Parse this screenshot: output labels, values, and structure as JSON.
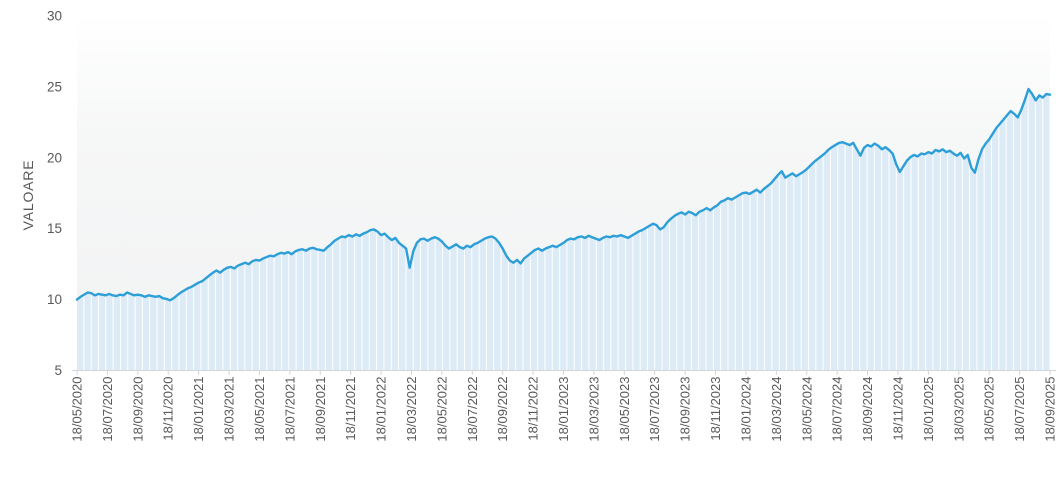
{
  "chart_data": {
    "type": "area",
    "title": "",
    "xlabel": "",
    "ylabel": "VALOARE",
    "ylim": [
      5,
      30
    ],
    "y_ticks": [
      30,
      25,
      20,
      15,
      10,
      5
    ],
    "grid": "off",
    "legend": "none",
    "x_tick_labels": [
      "18/05/2020",
      "18/07/2020",
      "18/09/2020",
      "18/11/2020",
      "18/01/2021",
      "18/03/2021",
      "18/05/2021",
      "18/07/2021",
      "18/09/2021",
      "18/11/2021",
      "18/01/2022",
      "18/03/2022",
      "18/05/2022",
      "18/07/2022",
      "18/09/2022",
      "18/11/2022",
      "18/01/2023",
      "18/03/2023",
      "18/05/2023",
      "18/07/2023",
      "18/09/2023",
      "18/11/2023",
      "18/01/2024",
      "18/03/2024",
      "18/05/2024",
      "18/07/2024",
      "18/09/2024",
      "18/11/2024",
      "18/01/2025",
      "18/03/2025",
      "18/05/2025",
      "18/07/2025",
      "18/09/2025"
    ],
    "series": [
      {
        "name": "VALOARE",
        "values": [
          10.0,
          10.2,
          10.35,
          10.5,
          10.45,
          10.3,
          10.4,
          10.35,
          10.3,
          10.4,
          10.3,
          10.25,
          10.35,
          10.3,
          10.5,
          10.4,
          10.3,
          10.35,
          10.3,
          10.2,
          10.3,
          10.25,
          10.2,
          10.25,
          10.1,
          10.05,
          9.95,
          10.1,
          10.3,
          10.5,
          10.65,
          10.8,
          10.9,
          11.05,
          11.2,
          11.3,
          11.5,
          11.7,
          11.9,
          12.05,
          11.9,
          12.1,
          12.25,
          12.3,
          12.2,
          12.4,
          12.5,
          12.6,
          12.5,
          12.7,
          12.8,
          12.75,
          12.9,
          13.0,
          13.1,
          13.05,
          13.2,
          13.3,
          13.25,
          13.35,
          13.2,
          13.4,
          13.5,
          13.55,
          13.45,
          13.6,
          13.65,
          13.55,
          13.5,
          13.45,
          13.7,
          13.9,
          14.15,
          14.3,
          14.45,
          14.4,
          14.55,
          14.45,
          14.6,
          14.5,
          14.65,
          14.75,
          14.9,
          14.95,
          14.8,
          14.55,
          14.65,
          14.4,
          14.2,
          14.35,
          14.0,
          13.8,
          13.6,
          12.25,
          13.4,
          14.0,
          14.25,
          14.3,
          14.15,
          14.3,
          14.4,
          14.3,
          14.1,
          13.8,
          13.6,
          13.75,
          13.9,
          13.7,
          13.6,
          13.8,
          13.7,
          13.9,
          14.0,
          14.15,
          14.3,
          14.4,
          14.45,
          14.3,
          14.0,
          13.6,
          13.1,
          12.75,
          12.6,
          12.8,
          12.55,
          12.9,
          13.1,
          13.3,
          13.5,
          13.6,
          13.45,
          13.6,
          13.7,
          13.8,
          13.7,
          13.85,
          14.0,
          14.2,
          14.3,
          14.25,
          14.4,
          14.45,
          14.35,
          14.5,
          14.4,
          14.3,
          14.2,
          14.35,
          14.45,
          14.4,
          14.5,
          14.45,
          14.55,
          14.45,
          14.35,
          14.5,
          14.65,
          14.8,
          14.9,
          15.05,
          15.2,
          15.35,
          15.25,
          14.95,
          15.1,
          15.45,
          15.7,
          15.9,
          16.05,
          16.15,
          16.0,
          16.2,
          16.1,
          15.95,
          16.2,
          16.3,
          16.45,
          16.3,
          16.5,
          16.65,
          16.9,
          17.0,
          17.15,
          17.05,
          17.2,
          17.35,
          17.5,
          17.55,
          17.45,
          17.6,
          17.75,
          17.55,
          17.8,
          18.0,
          18.2,
          18.5,
          18.8,
          19.05,
          18.6,
          18.75,
          18.9,
          18.7,
          18.85,
          19.0,
          19.2,
          19.45,
          19.7,
          19.9,
          20.1,
          20.3,
          20.55,
          20.75,
          20.9,
          21.05,
          21.1,
          21.0,
          20.9,
          21.05,
          20.6,
          20.15,
          20.7,
          20.9,
          20.8,
          21.0,
          20.85,
          20.6,
          20.75,
          20.55,
          20.3,
          19.55,
          19.0,
          19.4,
          19.8,
          20.05,
          20.2,
          20.1,
          20.3,
          20.25,
          20.4,
          20.3,
          20.55,
          20.45,
          20.6,
          20.4,
          20.5,
          20.3,
          20.15,
          20.35,
          19.95,
          20.2,
          19.3,
          18.95,
          19.9,
          20.6,
          21.0,
          21.3,
          21.7,
          22.1,
          22.4,
          22.7,
          23.0,
          23.3,
          23.1,
          22.85,
          23.4,
          24.1,
          24.85,
          24.5,
          24.05,
          24.4,
          24.25,
          24.5,
          24.45
        ]
      }
    ],
    "colors": {
      "line": "#2d9fd8",
      "area_fill": "#dcebf6",
      "area_stripe": "#ffffff",
      "axis": "#d2d6d8",
      "tick_text": "#595959",
      "axis_title_text": "#595959",
      "plot_bg_top": "#ffffff",
      "plot_bg_mid": "#f6f7f7",
      "plot_bg_bottom": "#f1f2f3"
    }
  }
}
